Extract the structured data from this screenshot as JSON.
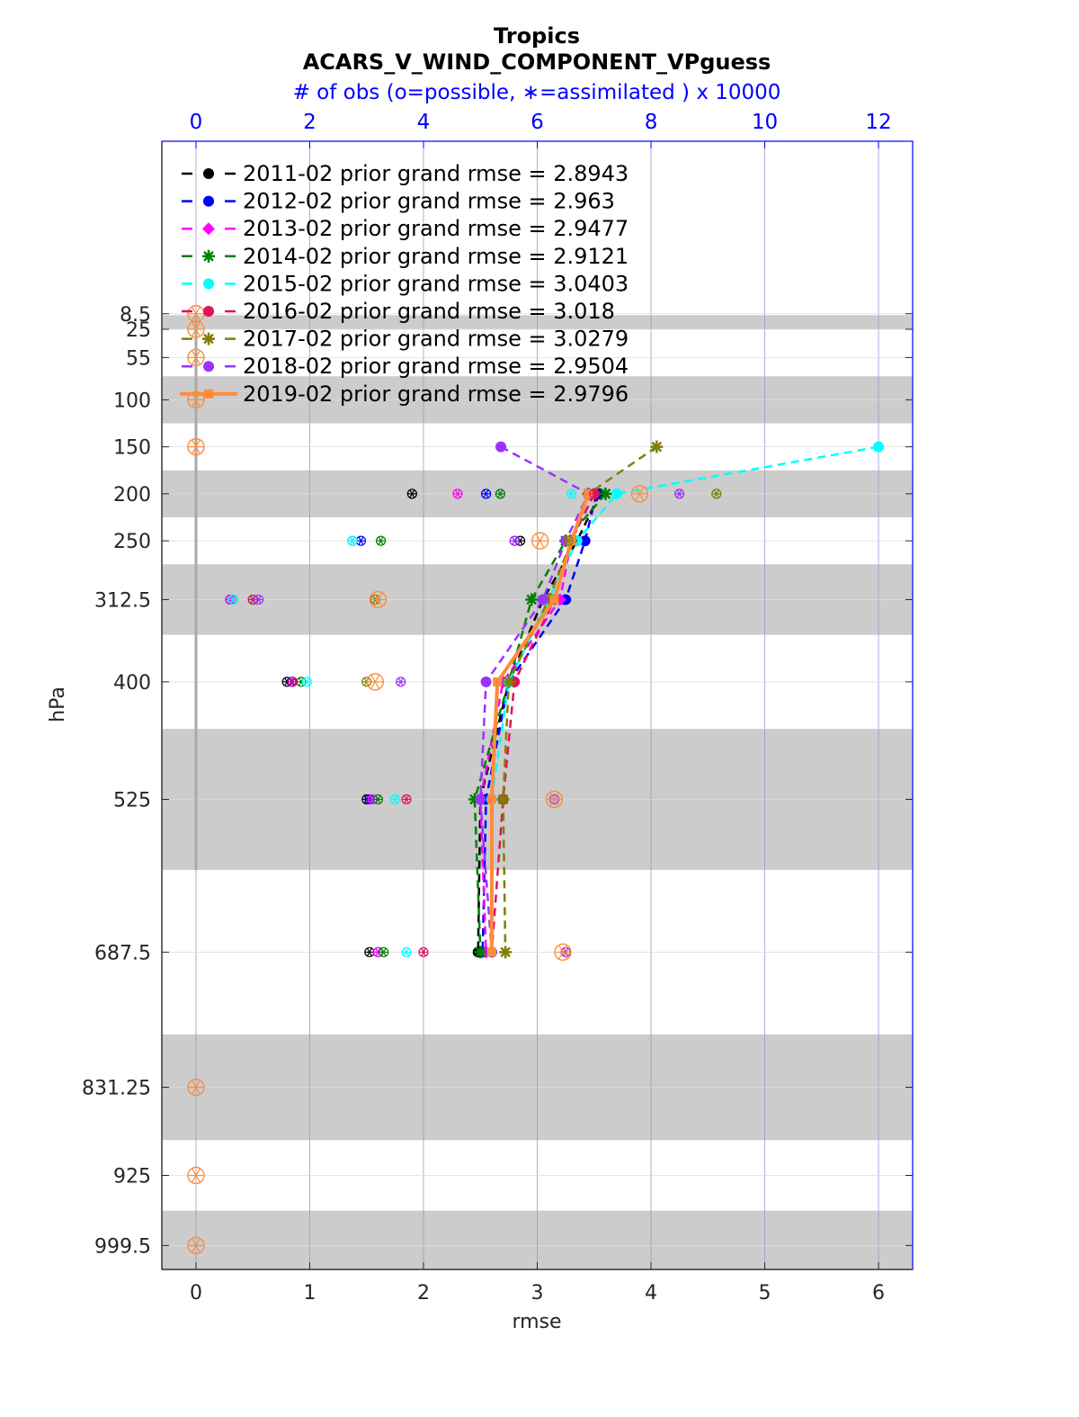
{
  "colors": {
    "band": "#cccccc",
    "grid": "#9999cc",
    "frame": "#0000ff",
    "axis_text": "#262626",
    "top_axis": "#0000ff"
  },
  "chart_data": {
    "type": "line",
    "title": "Tropics",
    "subtitle": "ACARS_V_WIND_COMPONENT_VPguess",
    "top_axis_label": "# of obs (o=possible, ∗=assimilated ) x 10000",
    "xlabel": "rmse",
    "ylabel": "hPa",
    "xlim": [
      -0.3,
      6.3
    ],
    "x_ticks": [
      "0",
      "1",
      "2",
      "3",
      "4",
      "5",
      "6"
    ],
    "top_xlim": [
      -0.6,
      12.6
    ],
    "top_ticks": [
      "0",
      "2",
      "4",
      "6",
      "8",
      "10",
      "12"
    ],
    "y_ticks": [
      "8.5",
      "25",
      "55",
      "100",
      "150",
      "200",
      "250",
      "312.5",
      "400",
      "525",
      "687.5",
      "831.25",
      "925",
      "999.5"
    ],
    "y_tick_values": [
      8.5,
      25,
      55,
      100,
      150,
      200,
      250,
      312.5,
      400,
      525,
      687.5,
      831.25,
      925,
      999.5
    ],
    "ylim": [
      1025,
      -175
    ],
    "grid": true,
    "legend_placement": "top-left",
    "bands": [
      [
        10,
        25
      ],
      [
        75,
        125
      ],
      [
        175,
        225
      ],
      [
        275,
        350
      ],
      [
        450,
        600
      ],
      [
        775,
        887.5
      ],
      [
        962.5,
        1025
      ]
    ],
    "series": [
      {
        "name": "2011-02",
        "legend": "2011-02 prior grand rmse = 2.8943",
        "color": "#000000",
        "marker": "circle",
        "solid": false,
        "levels": [
          200,
          250,
          312.5,
          400,
          525,
          687.5
        ],
        "rmse": [
          3.55,
          3.35,
          3.05,
          2.75,
          2.5,
          2.48
        ],
        "obs_levels": [
          200,
          250,
          312.5,
          400,
          525,
          687.5
        ],
        "obs_assim": [
          3.8,
          5.7,
          0.65,
          1.6,
          3.0,
          3.05
        ],
        "obs_possible": [
          3.8,
          5.7,
          0.65,
          1.6,
          3.0,
          3.05
        ]
      },
      {
        "name": "2012-02",
        "legend": "2012-02 prior grand rmse = 2.963",
        "color": "#0000ff",
        "marker": "circle",
        "solid": false,
        "levels": [
          200,
          250,
          312.5,
          400,
          525,
          687.5
        ],
        "rmse": [
          3.52,
          3.42,
          3.25,
          2.75,
          2.55,
          2.52
        ],
        "obs_levels": [
          200,
          250,
          312.5,
          400,
          525,
          687.5
        ],
        "obs_assim": [
          5.1,
          2.9,
          0.6,
          1.68,
          3.05,
          3.2
        ],
        "obs_possible": [
          5.1,
          2.9,
          0.6,
          1.68,
          3.05,
          3.2
        ]
      },
      {
        "name": "2013-02",
        "legend": "2013-02 prior grand rmse = 2.9477",
        "color": "#ff00ff",
        "marker": "diamond",
        "solid": false,
        "levels": [
          200,
          250,
          312.5,
          400,
          525,
          687.5
        ],
        "rmse": [
          3.5,
          3.3,
          3.2,
          2.7,
          2.5,
          2.55
        ],
        "obs_levels": [
          200,
          250,
          312.5,
          400,
          525,
          687.5
        ],
        "obs_assim": [
          4.6,
          2.75,
          0.6,
          1.7,
          3.1,
          3.2
        ],
        "obs_possible": [
          4.6,
          2.75,
          0.6,
          1.7,
          3.1,
          3.2
        ]
      },
      {
        "name": "2014-02",
        "legend": "2014-02 prior grand rmse = 2.9121",
        "color": "#008000",
        "marker": "star",
        "solid": false,
        "levels": [
          200,
          250,
          312.5,
          400,
          525,
          687.5
        ],
        "rmse": [
          3.6,
          3.25,
          2.95,
          2.75,
          2.45,
          2.5
        ],
        "obs_levels": [
          200,
          250,
          312.5,
          400,
          525,
          687.5
        ],
        "obs_assim": [
          5.35,
          3.25,
          1.0,
          1.85,
          3.2,
          3.3
        ],
        "obs_possible": [
          5.35,
          3.25,
          1.0,
          1.85,
          3.2,
          3.3
        ]
      },
      {
        "name": "2015-02",
        "legend": "2015-02 prior grand rmse = 3.0403",
        "color": "#00ffff",
        "marker": "circle",
        "solid": false,
        "levels": [
          150,
          200,
          250,
          312.5,
          400,
          525,
          687.5
        ],
        "rmse": [
          6.0,
          3.7,
          3.35,
          3.1,
          2.75,
          2.6,
          2.6
        ],
        "obs_levels": [
          200,
          250,
          312.5,
          400,
          525,
          687.5
        ],
        "obs_assim": [
          6.6,
          2.75,
          0.65,
          1.95,
          3.5,
          3.7
        ],
        "obs_possible": [
          6.6,
          2.75,
          0.65,
          1.95,
          3.5,
          3.7
        ]
      },
      {
        "name": "2016-02",
        "legend": "2016-02 prior grand rmse = 3.018",
        "color": "#e0115f",
        "marker": "circle",
        "solid": false,
        "levels": [
          200,
          250,
          312.5,
          400,
          525,
          687.5
        ],
        "rmse": [
          3.5,
          3.3,
          3.15,
          2.8,
          2.7,
          2.6
        ],
        "obs_levels": [
          200,
          250,
          312.5,
          400,
          525,
          687.5
        ],
        "obs_assim": [
          7.0,
          5.6,
          1.0,
          1.7,
          3.7,
          4.0
        ],
        "obs_possible": [
          7.0,
          5.6,
          1.0,
          1.7,
          3.7,
          4.0
        ]
      },
      {
        "name": "2017-02",
        "legend": "2017-02 prior grand rmse = 3.0279",
        "color": "#808000",
        "marker": "star",
        "solid": false,
        "levels": [
          150,
          200,
          250,
          312.5,
          400,
          525,
          687.5
        ],
        "rmse": [
          4.05,
          3.45,
          3.3,
          3.1,
          2.75,
          2.7,
          2.72
        ],
        "obs_levels": [
          200,
          250,
          312.5,
          400,
          525,
          687.5
        ],
        "obs_assim": [
          9.15,
          6.55,
          3.15,
          3.0,
          6.3,
          6.5
        ],
        "obs_possible": [
          9.15,
          6.55,
          3.15,
          3.0,
          6.3,
          6.5
        ]
      },
      {
        "name": "2018-02",
        "legend": "2018-02 prior grand rmse = 2.9504",
        "color": "#9933ff",
        "marker": "circle",
        "solid": false,
        "levels": [
          150,
          200,
          250,
          312.5,
          400,
          525,
          687.5
        ],
        "rmse": [
          2.68,
          3.45,
          3.25,
          3.05,
          2.55,
          2.5,
          2.6
        ],
        "obs_levels": [
          200,
          250,
          312.5,
          400,
          525,
          687.5
        ],
        "obs_assim": [
          8.5,
          5.6,
          1.1,
          3.6,
          6.3,
          6.5
        ],
        "obs_possible": [
          8.5,
          5.6,
          1.1,
          3.6,
          6.3,
          6.5
        ]
      },
      {
        "name": "2019-02",
        "legend": "2019-02 prior grand rmse = 2.9796",
        "color": "#ff8c3a",
        "marker": "square",
        "solid": true,
        "levels": [
          200,
          250,
          312.5,
          400,
          525,
          687.5
        ],
        "rmse": [
          3.45,
          3.3,
          3.15,
          2.65,
          2.6,
          2.6
        ],
        "obs_levels": [
          8.5,
          25,
          55,
          100,
          150,
          200,
          250,
          312.5,
          400,
          525,
          687.5,
          831.25,
          925,
          999.5
        ],
        "obs_assim": [
          0,
          0,
          0,
          0,
          0,
          7.8,
          6.05,
          3.2,
          3.15,
          6.3,
          6.45,
          0,
          0,
          0
        ],
        "obs_possible": [
          0,
          0,
          0,
          0,
          0,
          7.8,
          6.05,
          3.2,
          3.15,
          6.3,
          6.45,
          0,
          0,
          0
        ]
      }
    ]
  }
}
